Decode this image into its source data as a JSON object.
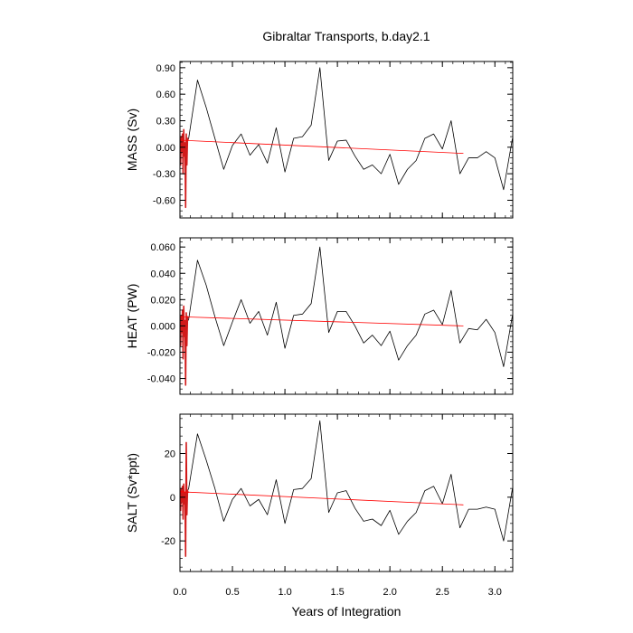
{
  "title": "Gibraltar Transports, b.day2.1",
  "x_axis": {
    "label": "Years of Integration",
    "ticks": [
      "0.0",
      "0.5",
      "1.0",
      "1.5",
      "2.0",
      "2.5",
      "3.0"
    ]
  },
  "colors": {
    "series": "#000000",
    "spinup": "#d11a1a",
    "trend": "#ff0000",
    "frame": "#000000"
  },
  "chart_data": [
    {
      "type": "line",
      "ylabel": "MASS (Sv)",
      "xlim": [
        0,
        3.17
      ],
      "ylim": [
        -0.8,
        0.97
      ],
      "yticks": [
        -0.6,
        -0.3,
        0.0,
        0.3,
        0.6,
        0.9
      ],
      "yticklabels": [
        "-0.60",
        "-0.30",
        "0.00",
        "0.30",
        "0.60",
        "0.90"
      ],
      "grid": false,
      "series": [
        {
          "x": [
            0.0,
            0.083,
            0.167,
            0.25,
            0.333,
            0.417,
            0.5,
            0.583,
            0.667,
            0.75,
            0.833,
            0.917,
            1.0,
            1.083,
            1.167,
            1.25,
            1.333,
            1.417,
            1.5,
            1.583,
            1.667,
            1.75,
            1.833,
            1.917,
            2.0,
            2.083,
            2.167,
            2.25,
            2.333,
            2.417,
            2.5,
            2.583,
            2.667,
            2.75,
            2.833,
            2.917,
            3.0,
            3.083,
            3.167
          ],
          "values": [
            -0.1,
            0.1,
            0.76,
            0.45,
            0.1,
            -0.25,
            0.02,
            0.15,
            -0.09,
            0.03,
            -0.18,
            0.22,
            -0.28,
            0.1,
            0.12,
            0.25,
            0.9,
            -0.15,
            0.07,
            0.08,
            -0.1,
            -0.25,
            -0.2,
            -0.3,
            -0.08,
            -0.42,
            -0.25,
            -0.15,
            0.1,
            0.15,
            -0.02,
            0.3,
            -0.3,
            -0.12,
            -0.12,
            -0.05,
            -0.12,
            -0.48,
            0.1
          ]
        },
        {
          "style": "spinup",
          "x": [
            0.0,
            0.006,
            0.012,
            0.018,
            0.024,
            0.03,
            0.036,
            0.042,
            0.048,
            0.054,
            0.06,
            0.066,
            0.072,
            0.078
          ],
          "values": [
            0.0,
            -0.2,
            0.12,
            -0.05,
            0.15,
            -0.3,
            0.2,
            -0.1,
            0.05,
            -0.68,
            0.15,
            -0.2,
            0.1,
            0.08
          ]
        },
        {
          "style": "trend",
          "x": [
            0.0,
            2.7
          ],
          "values": [
            0.08,
            -0.07
          ]
        }
      ]
    },
    {
      "type": "line",
      "ylabel": "HEAT (PW)",
      "xlim": [
        0,
        3.17
      ],
      "ylim": [
        -0.052,
        0.067
      ],
      "yticks": [
        -0.04,
        -0.02,
        0.0,
        0.02,
        0.04,
        0.06
      ],
      "yticklabels": [
        "-0.040",
        "-0.020",
        "0.000",
        "0.020",
        "0.040",
        "0.060"
      ],
      "grid": false,
      "series": [
        {
          "x": [
            0.0,
            0.083,
            0.167,
            0.25,
            0.333,
            0.417,
            0.5,
            0.583,
            0.667,
            0.75,
            0.833,
            0.917,
            1.0,
            1.083,
            1.167,
            1.25,
            1.333,
            1.417,
            1.5,
            1.583,
            1.667,
            1.75,
            1.833,
            1.917,
            2.0,
            2.083,
            2.167,
            2.25,
            2.333,
            2.417,
            2.5,
            2.583,
            2.667,
            2.75,
            2.833,
            2.917,
            3.0,
            3.083,
            3.167
          ],
          "values": [
            -0.006,
            0.005,
            0.05,
            0.031,
            0.007,
            -0.015,
            0.003,
            0.02,
            0.002,
            0.011,
            -0.007,
            0.018,
            -0.017,
            0.008,
            0.009,
            0.017,
            0.06,
            -0.005,
            0.011,
            0.011,
            0.0,
            -0.013,
            -0.007,
            -0.015,
            -0.004,
            -0.026,
            -0.015,
            -0.007,
            0.009,
            0.012,
            0.001,
            0.027,
            -0.013,
            -0.002,
            -0.003,
            0.005,
            -0.005,
            -0.031,
            0.008
          ]
        },
        {
          "style": "spinup",
          "x": [
            0.0,
            0.006,
            0.012,
            0.018,
            0.024,
            0.03,
            0.036,
            0.042,
            0.048,
            0.054,
            0.06,
            0.066,
            0.072,
            0.078
          ],
          "values": [
            0.0,
            -0.015,
            0.008,
            -0.005,
            0.012,
            -0.025,
            0.015,
            -0.008,
            0.004,
            -0.045,
            0.01,
            -0.015,
            0.007,
            0.006
          ]
        },
        {
          "style": "trend",
          "x": [
            0.0,
            2.7
          ],
          "values": [
            0.007,
            0.0
          ]
        }
      ]
    },
    {
      "type": "line",
      "xlabel": "Years of Integration",
      "ylabel": "SALT (Sv*ppt)",
      "xlim": [
        0,
        3.17
      ],
      "ylim": [
        -34,
        38
      ],
      "yticks": [
        -20,
        0,
        20
      ],
      "yticklabels": [
        "-20",
        "0",
        "20"
      ],
      "grid": false,
      "series": [
        {
          "x": [
            0.0,
            0.083,
            0.167,
            0.25,
            0.333,
            0.417,
            0.5,
            0.583,
            0.667,
            0.75,
            0.833,
            0.917,
            1.0,
            1.083,
            1.167,
            1.25,
            1.333,
            1.417,
            1.5,
            1.583,
            1.667,
            1.75,
            1.833,
            1.917,
            2.0,
            2.083,
            2.167,
            2.25,
            2.333,
            2.417,
            2.5,
            2.583,
            2.667,
            2.75,
            2.833,
            2.917,
            3.0,
            3.083,
            3.167
          ],
          "values": [
            -4,
            4,
            29,
            17,
            4,
            -11,
            -1,
            4,
            -4,
            -1,
            -8,
            8,
            -12,
            3.5,
            4,
            8.5,
            35,
            -7,
            2,
            3,
            -5,
            -11,
            -10,
            -13,
            -6,
            -17,
            -11,
            -7,
            3,
            5,
            -3,
            10.5,
            -14,
            -5.5,
            -5.5,
            -4.5,
            -5.5,
            -20,
            4
          ]
        },
        {
          "style": "spinup",
          "x": [
            0.0,
            0.006,
            0.012,
            0.018,
            0.024,
            0.03,
            0.036,
            0.042,
            0.048,
            0.054,
            0.06,
            0.066,
            0.072,
            0.078
          ],
          "values": [
            0,
            -6,
            4,
            -2,
            5,
            -10,
            6,
            -3,
            2,
            -27,
            25,
            -8,
            3,
            2
          ]
        },
        {
          "style": "trend",
          "x": [
            0.0,
            2.7
          ],
          "values": [
            2.5,
            -3.5
          ]
        }
      ]
    }
  ]
}
